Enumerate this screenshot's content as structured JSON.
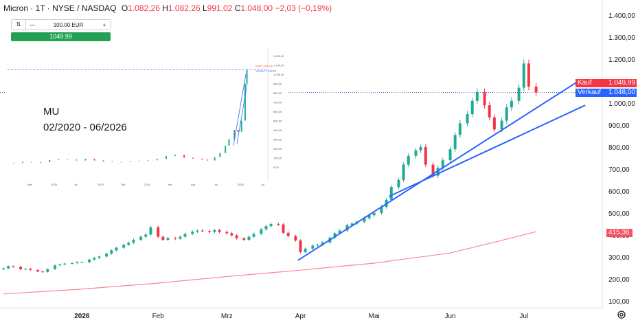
{
  "header": {
    "symbol": "Micron · 1T · NYSE / NASDAQ",
    "open_label": "O",
    "open": "1.082,26",
    "high_label": "H",
    "high": "1.082,26",
    "low_label": "L",
    "low": "991,02",
    "close_label": "C",
    "close": "1.048,00",
    "change": "−2,03 (−0,19%)"
  },
  "trade_box": {
    "quantity": "100.00 EUR",
    "minus": "—",
    "plus": "+",
    "buy_price": "1049.99"
  },
  "inset": {
    "ticker": "MU",
    "range": "02/2020 - 06/2026"
  },
  "price_tags": {
    "kauf_label": "Kauf",
    "kauf": "1.049,99",
    "verkauf_label": "Verkauf",
    "verkauf": "1.048,00",
    "ma": "415,36"
  },
  "colors": {
    "up": "#22ab94",
    "down": "#f23645",
    "trend": "#2962ff",
    "ma": "#f7525f",
    "kauf": "#f23645",
    "verkauf": "#2962ff"
  },
  "chart_data": {
    "type": "candlestick",
    "y_axis": {
      "min": 100,
      "max": 1400,
      "ticks": [
        "1.400,00",
        "1.300,00",
        "1.200,00",
        "1.100,00",
        "1.000,00",
        "900,00",
        "800,00",
        "700,00",
        "600,00",
        "500,00",
        "400,00",
        "300,00",
        "200,00",
        "100,00"
      ]
    },
    "x_axis": {
      "labels": [
        "2026",
        "Feb",
        "Mrz",
        "Apr",
        "Mai",
        "Jun",
        "Jul"
      ],
      "label_dates": [
        "2026-01-02",
        "2026-02-02",
        "2026-03-02",
        "2026-04-01",
        "2026-05-01",
        "2026-06-01",
        "2026-07-01"
      ],
      "start": "2025-12-01",
      "end": "2026-07-31"
    },
    "closes": [
      [
        "2025-12-01",
        248
      ],
      [
        "2025-12-03",
        258
      ],
      [
        "2025-12-05",
        255
      ],
      [
        "2025-12-08",
        244
      ],
      [
        "2025-12-10",
        246
      ],
      [
        "2025-12-12",
        241
      ],
      [
        "2025-12-15",
        234
      ],
      [
        "2025-12-17",
        232
      ],
      [
        "2025-12-19",
        245
      ],
      [
        "2025-12-22",
        262
      ],
      [
        "2025-12-24",
        266
      ],
      [
        "2025-12-26",
        270
      ],
      [
        "2025-12-29",
        272
      ],
      [
        "2025-12-31",
        276
      ],
      [
        "2026-01-02",
        276
      ],
      [
        "2026-01-05",
        288
      ],
      [
        "2026-01-07",
        296
      ],
      [
        "2026-01-09",
        302
      ],
      [
        "2026-01-12",
        315
      ],
      [
        "2026-01-14",
        330
      ],
      [
        "2026-01-16",
        342
      ],
      [
        "2026-01-19",
        355
      ],
      [
        "2026-01-21",
        365
      ],
      [
        "2026-01-23",
        378
      ],
      [
        "2026-01-26",
        392
      ],
      [
        "2026-01-28",
        402
      ],
      [
        "2026-01-30",
        435
      ],
      [
        "2026-02-02",
        392
      ],
      [
        "2026-02-04",
        378
      ],
      [
        "2026-02-06",
        386
      ],
      [
        "2026-02-09",
        383
      ],
      [
        "2026-02-11",
        392
      ],
      [
        "2026-02-13",
        405
      ],
      [
        "2026-02-16",
        415
      ],
      [
        "2026-02-18",
        420
      ],
      [
        "2026-02-20",
        418
      ],
      [
        "2026-02-23",
        414
      ],
      [
        "2026-02-25",
        422
      ],
      [
        "2026-02-27",
        414
      ],
      [
        "2026-03-02",
        408
      ],
      [
        "2026-03-04",
        398
      ],
      [
        "2026-03-06",
        385
      ],
      [
        "2026-03-09",
        378
      ],
      [
        "2026-03-11",
        392
      ],
      [
        "2026-03-13",
        405
      ],
      [
        "2026-03-16",
        426
      ],
      [
        "2026-03-18",
        440
      ],
      [
        "2026-03-20",
        450
      ],
      [
        "2026-03-23",
        448
      ],
      [
        "2026-03-25",
        410
      ],
      [
        "2026-03-27",
        395
      ],
      [
        "2026-03-30",
        375
      ],
      [
        "2026-04-01",
        322
      ],
      [
        "2026-04-03",
        338
      ],
      [
        "2026-04-06",
        352
      ],
      [
        "2026-04-08",
        355
      ],
      [
        "2026-04-10",
        366
      ],
      [
        "2026-04-13",
        388
      ],
      [
        "2026-04-15",
        408
      ],
      [
        "2026-04-17",
        420
      ],
      [
        "2026-04-20",
        445
      ],
      [
        "2026-04-22",
        452
      ],
      [
        "2026-04-24",
        460
      ],
      [
        "2026-04-27",
        476
      ],
      [
        "2026-04-29",
        490
      ],
      [
        "2026-05-01",
        500
      ],
      [
        "2026-05-04",
        528
      ],
      [
        "2026-05-06",
        560
      ],
      [
        "2026-05-08",
        618
      ],
      [
        "2026-05-11",
        650
      ],
      [
        "2026-05-13",
        720
      ],
      [
        "2026-05-15",
        760
      ],
      [
        "2026-05-18",
        785
      ],
      [
        "2026-05-20",
        800
      ],
      [
        "2026-05-22",
        720
      ],
      [
        "2026-05-25",
        670
      ],
      [
        "2026-05-27",
        705
      ],
      [
        "2026-05-29",
        740
      ],
      [
        "2026-06-01",
        790
      ],
      [
        "2026-06-03",
        855
      ],
      [
        "2026-06-05",
        908
      ],
      [
        "2026-06-08",
        950
      ],
      [
        "2026-06-10",
        1010
      ],
      [
        "2026-06-12",
        1050
      ],
      [
        "2026-06-15",
        990
      ],
      [
        "2026-06-17",
        935
      ],
      [
        "2026-06-19",
        880
      ],
      [
        "2026-06-22",
        920
      ],
      [
        "2026-06-24",
        980
      ],
      [
        "2026-06-26",
        1010
      ],
      [
        "2026-06-29",
        1070
      ],
      [
        "2026-07-01",
        1180
      ],
      [
        "2026-07-03",
        1075
      ],
      [
        "2026-07-06",
        1048
      ]
    ],
    "moving_average": [
      [
        "2025-12-01",
        132
      ],
      [
        "2026-01-01",
        153
      ],
      [
        "2026-02-01",
        180
      ],
      [
        "2026-03-01",
        210
      ],
      [
        "2026-04-01",
        240
      ],
      [
        "2026-05-01",
        272
      ],
      [
        "2026-06-01",
        318
      ],
      [
        "2026-06-20",
        370
      ],
      [
        "2026-07-06",
        415
      ]
    ],
    "trendlines": [
      [
        [
          "2026-03-31",
          285
        ],
        [
          "2026-07-24",
          1105
        ]
      ],
      [
        [
          "2026-05-07",
          575
        ],
        [
          "2026-07-26",
          990
        ]
      ]
    ],
    "current_price_line": 1048,
    "inset_chart": {
      "x_labels": [
        "Mai",
        "2025",
        "Jul",
        "2023",
        "Okt",
        "2024",
        "Jan",
        "Apr",
        "Jul",
        "2025",
        "Jul"
      ],
      "y_ticks": [
        "1.200,00",
        "1.100,00",
        "1.000,00",
        "900,00",
        "800,00",
        "700,00",
        "600,00",
        "500,00",
        "400,00",
        "300,00",
        "200,00",
        "100,00",
        "0,00"
      ],
      "tags": [
        "Kauf 1.049,99",
        "Verkauf 1.048,00"
      ],
      "closes": [
        [
          2020.0,
          45
        ],
        [
          2020.25,
          55
        ],
        [
          2020.5,
          50
        ],
        [
          2020.75,
          52
        ],
        [
          2021.0,
          75
        ],
        [
          2021.25,
          85
        ],
        [
          2021.5,
          80
        ],
        [
          2021.75,
          70
        ],
        [
          2022.0,
          88
        ],
        [
          2022.25,
          70
        ],
        [
          2022.5,
          58
        ],
        [
          2022.75,
          52
        ],
        [
          2023.0,
          55
        ],
        [
          2023.25,
          62
        ],
        [
          2023.5,
          68
        ],
        [
          2023.75,
          72
        ],
        [
          2024.0,
          85
        ],
        [
          2024.25,
          118
        ],
        [
          2024.5,
          130
        ],
        [
          2024.75,
          100
        ],
        [
          2025.0,
          90
        ],
        [
          2025.25,
          80
        ],
        [
          2025.4,
          70
        ],
        [
          2025.6,
          105
        ],
        [
          2025.75,
          150
        ],
        [
          2025.9,
          230
        ],
        [
          2026.0,
          300
        ],
        [
          2026.15,
          400
        ],
        [
          2026.25,
          380
        ],
        [
          2026.35,
          500
        ],
        [
          2026.45,
          900
        ],
        [
          2026.5,
          1048
        ]
      ]
    }
  }
}
